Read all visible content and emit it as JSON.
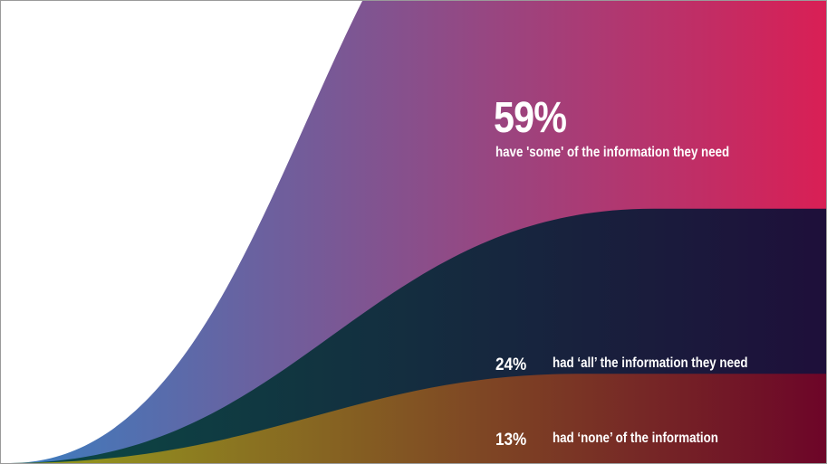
{
  "chart_data": {
    "type": "area",
    "title": "",
    "xlabel": "",
    "ylabel": "",
    "legend": "none",
    "grid": false,
    "ylim": [
      0,
      100
    ],
    "series": [
      {
        "key": "some",
        "value": 59,
        "value_label": "59%",
        "label": "have 'some' of the information they need",
        "color_start": "#3a7ec0",
        "color_end": "#d91f55"
      },
      {
        "key": "all",
        "value": 24,
        "value_label": "24%",
        "label": "had ‘all’ the information they need",
        "color_start": "#0a4a44",
        "color_end": "#1e0f3a"
      },
      {
        "key": "none",
        "value": 13,
        "value_label": "13%",
        "label": "had ‘none’ of the information",
        "color_start": "#96a01e",
        "color_end": "#6d0528"
      }
    ]
  }
}
